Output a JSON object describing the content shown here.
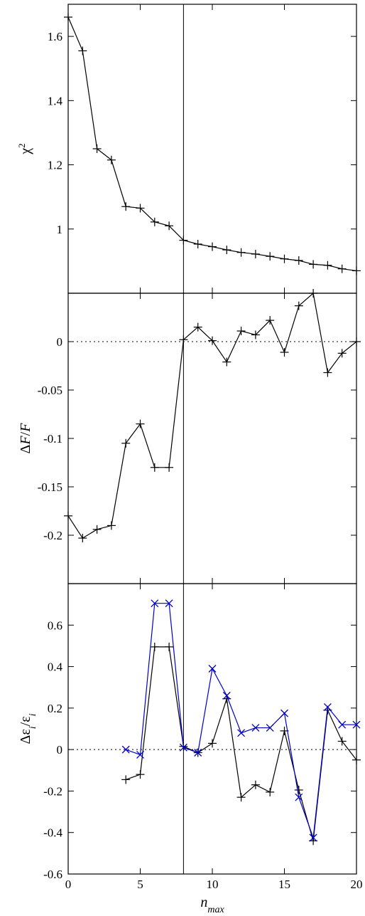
{
  "chart_data": [
    {
      "type": "line",
      "ylabel": "χ²",
      "xlim": [
        0,
        20
      ],
      "ylim": [
        0.8,
        1.7
      ],
      "yticks": [
        1,
        1.2,
        1.4,
        1.6
      ],
      "ytick_labels": [
        "1",
        "1.2",
        "1.4",
        "1.6"
      ],
      "vline_x": 8,
      "series": [
        {
          "color": "#000000",
          "marker": "plus",
          "x": [
            0,
            1,
            2,
            3,
            4,
            5,
            6,
            7,
            8,
            9,
            10,
            11,
            12,
            13,
            14,
            15,
            16,
            17,
            18,
            19,
            20
          ],
          "y": [
            1.66,
            1.555,
            1.25,
            1.215,
            1.07,
            1.065,
            1.022,
            1.01,
            0.965,
            0.953,
            0.945,
            0.935,
            0.927,
            0.922,
            0.915,
            0.907,
            0.902,
            0.89,
            0.887,
            0.876,
            0.87
          ]
        }
      ]
    },
    {
      "type": "line",
      "ylabel": "ΔF/F",
      "xlim": [
        0,
        20
      ],
      "ylim": [
        -0.25,
        0.05
      ],
      "yticks": [
        -0.2,
        -0.15,
        -0.1,
        -0.05,
        0
      ],
      "ytick_labels": [
        "-0.2",
        "-0.15",
        "-0.1",
        "-0.05",
        "0"
      ],
      "hline_y": 0,
      "vline_x": 8,
      "series": [
        {
          "color": "#000000",
          "marker": "plus",
          "x": [
            0,
            1,
            2,
            3,
            4,
            5,
            6,
            7,
            8,
            9,
            10,
            11,
            12,
            13,
            14,
            15,
            16,
            17,
            18,
            19,
            20
          ],
          "y": [
            -0.18,
            -0.203,
            -0.194,
            -0.19,
            -0.105,
            -0.085,
            -0.13,
            -0.13,
            0.002,
            0.015,
            0.001,
            -0.021,
            0.011,
            0.007,
            0.022,
            -0.011,
            0.037,
            0.05,
            -0.032,
            -0.012,
            0.0
          ]
        }
      ]
    },
    {
      "type": "line",
      "ylabel": "Δε_i/ε_i",
      "xlabel": "n_max",
      "xlim": [
        0,
        20
      ],
      "ylim": [
        -0.6,
        0.8
      ],
      "xticks": [
        0,
        5,
        10,
        15,
        20
      ],
      "xtick_labels": [
        "0",
        "5",
        "10",
        "15",
        "20"
      ],
      "yticks": [
        -0.6,
        -0.4,
        -0.2,
        0,
        0.2,
        0.4,
        0.6
      ],
      "ytick_labels": [
        "-0.6",
        "-0.4",
        "-0.2",
        "0",
        "0.2",
        "0.4",
        "0.6"
      ],
      "hline_y": 0,
      "vline_x": 8,
      "series": [
        {
          "color": "#000000",
          "marker": "plus",
          "x": [
            4,
            5,
            6,
            7,
            8,
            9,
            10,
            11,
            12,
            13,
            14,
            15,
            16,
            17,
            18,
            19,
            20
          ],
          "y": [
            -0.145,
            -0.12,
            0.495,
            0.495,
            0.015,
            -0.015,
            0.03,
            0.245,
            -0.23,
            -0.17,
            -0.205,
            0.09,
            -0.195,
            -0.44,
            0.19,
            0.04,
            -0.05
          ]
        },
        {
          "color": "#0000cc",
          "marker": "cross",
          "x": [
            4,
            5,
            6,
            7,
            8,
            9,
            10,
            11,
            12,
            13,
            14,
            15,
            16,
            17,
            18,
            19,
            20
          ],
          "y": [
            0.0,
            -0.025,
            0.705,
            0.705,
            0.01,
            -0.015,
            0.39,
            0.26,
            0.08,
            0.105,
            0.105,
            0.175,
            -0.23,
            -0.425,
            0.205,
            0.12,
            0.12
          ]
        }
      ]
    }
  ]
}
